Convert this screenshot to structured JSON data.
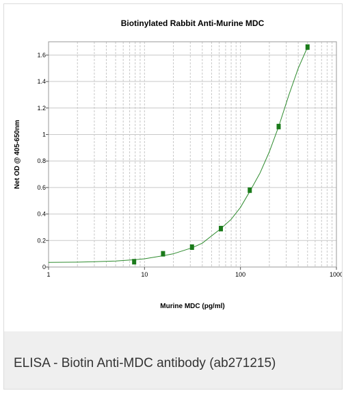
{
  "caption": "ELISA - Biotin Anti-MDC antibody (ab271215)",
  "colors": {
    "curve": "#2e8b2e",
    "marker": "#1a7a1a",
    "grid": "#c8c8c8",
    "caption_bg": "#efefef"
  },
  "chart_data": {
    "type": "scatter",
    "title": "Biotinylated Rabbit Anti-Murine MDC",
    "xlabel": "Murine MDC (pg/ml)",
    "ylabel": "Net OD @ 405-650nm",
    "xscale": "log",
    "xlim": [
      1,
      1000
    ],
    "ylim": [
      0,
      1.7
    ],
    "xticks": [
      1,
      10,
      100,
      1000
    ],
    "xtick_labels": [
      "1",
      "10",
      "100",
      "1000"
    ],
    "yticks": [
      0,
      0.2,
      0.4,
      0.6,
      0.8,
      1,
      1.2,
      1.4,
      1.6
    ],
    "ytick_labels": [
      "0",
      "0.2",
      "0.4",
      "0.6",
      "0.8",
      "1",
      "1.2",
      "1.4",
      "1.6"
    ],
    "grid": true,
    "series": [
      {
        "x": [
          7.8,
          15.6,
          31.25,
          62.5,
          125,
          250,
          500
        ],
        "y": [
          0.04,
          0.1,
          0.15,
          0.29,
          0.58,
          1.06,
          1.66
        ]
      }
    ],
    "fit": {
      "x": [
        1,
        2,
        3,
        5,
        7.8,
        10,
        15.6,
        20,
        31.25,
        40,
        62.5,
        80,
        100,
        125,
        160,
        200,
        250,
        320,
        400,
        500
      ],
      "y": [
        0.035,
        0.037,
        0.04,
        0.045,
        0.055,
        0.062,
        0.085,
        0.1,
        0.145,
        0.18,
        0.29,
        0.36,
        0.45,
        0.57,
        0.71,
        0.87,
        1.06,
        1.3,
        1.5,
        1.66
      ]
    }
  }
}
